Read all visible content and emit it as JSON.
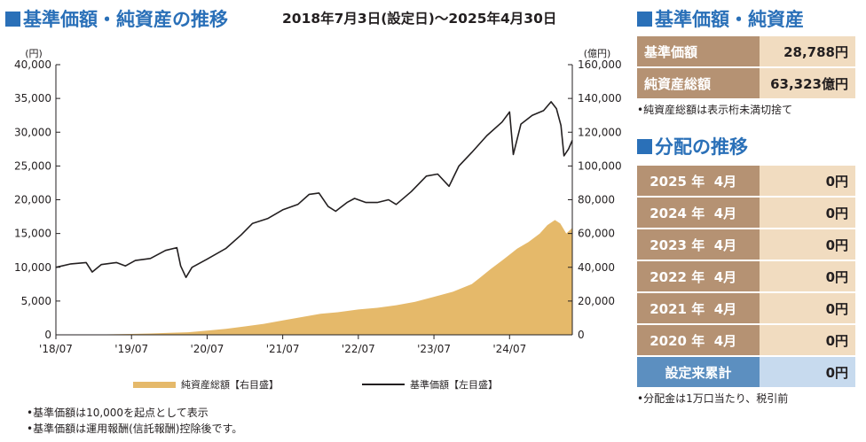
{
  "header": {
    "title": "基準価額・純資産の推移",
    "period": "2018年7月3日(設定日)～2025年4月30日"
  },
  "nav_panel": {
    "title": "基準価額・純資産",
    "nav_label": "基準価額",
    "nav_value": "28,788円",
    "assets_label": "純資産総額",
    "assets_value": "63,323億円",
    "note": "•純資産総額は表示桁未満切捨て"
  },
  "distribution_panel": {
    "title": "分配の推移",
    "rows": [
      {
        "year": "2025",
        "year_unit": "年",
        "month": "4月",
        "value": "0円"
      },
      {
        "year": "2024",
        "year_unit": "年",
        "month": "4月",
        "value": "0円"
      },
      {
        "year": "2023",
        "year_unit": "年",
        "month": "4月",
        "value": "0円"
      },
      {
        "year": "2022",
        "year_unit": "年",
        "month": "4月",
        "value": "0円"
      },
      {
        "year": "2021",
        "year_unit": "年",
        "month": "4月",
        "value": "0円"
      },
      {
        "year": "2020",
        "year_unit": "年",
        "month": "4月",
        "value": "0円"
      }
    ],
    "total_label": "設定来累計",
    "total_value": "0円",
    "note": "•分配金は1万口当たり、税引前"
  },
  "footnotes": [
    "•基準価額は10,000を起点として表示",
    "•基準価額は運用報酬(信託報酬)控除後です。"
  ],
  "colors": {
    "title_blue": "#2a70b8",
    "area_fill": "#e5b96a",
    "line": "#231f20",
    "table_label": "#b59273",
    "table_value": "#f1dcc0",
    "total_label": "#5c8fc0",
    "total_value": "#c7daee"
  },
  "chart_data": {
    "type": "line",
    "x_tick_labels": [
      "'18/07",
      "'19/07",
      "'20/07",
      "'21/07",
      "'22/07",
      "'23/07",
      "'24/07"
    ],
    "left_axis": {
      "unit": "(円)",
      "ylim": [
        0,
        40000
      ],
      "ticks": [
        "0",
        "5,000",
        "10,000",
        "15,000",
        "20,000",
        "25,000",
        "30,000",
        "35,000",
        "40,000"
      ]
    },
    "right_axis": {
      "unit": "(億円)",
      "ylim": [
        0,
        160000
      ],
      "ticks": [
        "0",
        "20,000",
        "40,000",
        "60,000",
        "80,000",
        "100,000",
        "120,000",
        "140,000",
        "160,000"
      ]
    },
    "x_range": [
      2018.5,
      2025.33
    ],
    "grid": false,
    "legend_position": "bottom",
    "series": [
      {
        "name": "純資産総額【右目盛】",
        "type": "area",
        "axis": "right",
        "x": [
          2018.5,
          2018.75,
          2019.0,
          2019.25,
          2019.5,
          2019.75,
          2020.0,
          2020.25,
          2020.5,
          2020.75,
          2021.0,
          2021.25,
          2021.5,
          2021.75,
          2022.0,
          2022.25,
          2022.5,
          2022.75,
          2023.0,
          2023.25,
          2023.5,
          2023.75,
          2024.0,
          2024.1,
          2024.25,
          2024.4,
          2024.5,
          2024.6,
          2024.75,
          2024.9,
          2025.0,
          2025.1,
          2025.17,
          2025.25,
          2025.33
        ],
        "y": [
          0,
          50,
          150,
          300,
          500,
          800,
          1200,
          1500,
          2500,
          3500,
          5000,
          6500,
          8500,
          10500,
          12500,
          13500,
          15000,
          16000,
          17500,
          19500,
          22500,
          25500,
          30000,
          33500,
          39000,
          44000,
          47500,
          51000,
          55000,
          60000,
          65000,
          68000,
          66000,
          60000,
          63323
        ]
      },
      {
        "name": "基準価額【左目盛】",
        "type": "line",
        "axis": "left",
        "x": [
          2018.5,
          2018.7,
          2018.9,
          2018.98,
          2019.1,
          2019.3,
          2019.42,
          2019.55,
          2019.75,
          2019.95,
          2020.1,
          2020.15,
          2020.22,
          2020.3,
          2020.5,
          2020.75,
          2020.95,
          2021.1,
          2021.3,
          2021.5,
          2021.7,
          2021.85,
          2021.98,
          2022.1,
          2022.2,
          2022.35,
          2022.45,
          2022.6,
          2022.75,
          2022.9,
          2023.0,
          2023.2,
          2023.4,
          2023.55,
          2023.7,
          2023.83,
          2024.0,
          2024.2,
          2024.4,
          2024.5,
          2024.55,
          2024.65,
          2024.8,
          2024.95,
          2025.05,
          2025.12,
          2025.18,
          2025.22,
          2025.28,
          2025.33
        ],
        "y": [
          10000,
          10500,
          10700,
          9300,
          10400,
          10700,
          10200,
          11000,
          11300,
          12500,
          12900,
          10200,
          8500,
          10000,
          11200,
          12800,
          14800,
          16500,
          17200,
          18500,
          19300,
          20800,
          21000,
          19000,
          18300,
          19600,
          20200,
          19600,
          19600,
          20000,
          19300,
          21200,
          23500,
          23800,
          22000,
          25000,
          27000,
          29500,
          31500,
          33000,
          26700,
          31200,
          32500,
          33200,
          34500,
          33500,
          31000,
          26500,
          27500,
          28788
        ]
      }
    ]
  }
}
